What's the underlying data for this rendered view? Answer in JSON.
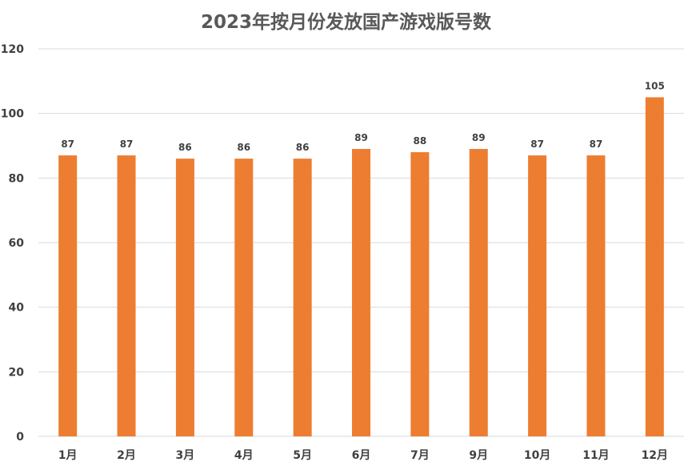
{
  "chart_data": {
    "type": "bar",
    "title": "2023年按月份发放国产游戏版号数",
    "categories": [
      "1月",
      "2月",
      "3月",
      "4月",
      "5月",
      "6月",
      "7月",
      "9月",
      "10月",
      "11月",
      "12月"
    ],
    "values": [
      87,
      87,
      86,
      86,
      86,
      89,
      88,
      89,
      87,
      87,
      105
    ],
    "ylim": [
      0,
      120
    ],
    "yticks": [
      0,
      20,
      40,
      60,
      80,
      100,
      120
    ],
    "grid": true,
    "bar_color": "#ED7D31",
    "grid_color": "#D9D9D9",
    "data_labels": true
  }
}
